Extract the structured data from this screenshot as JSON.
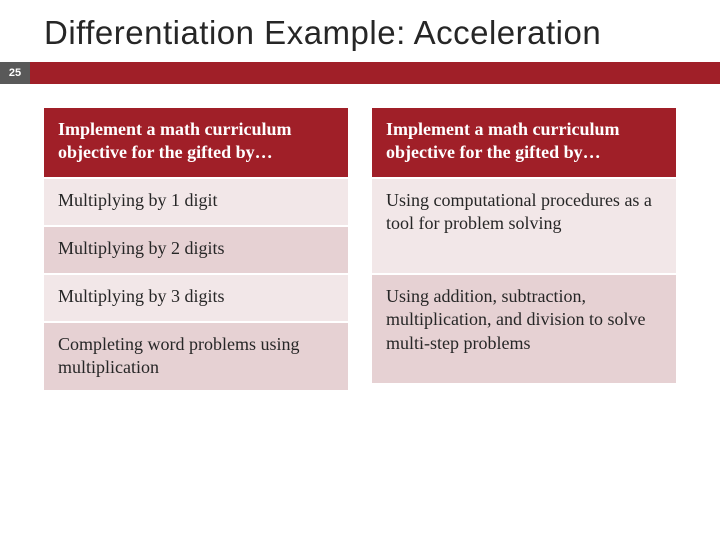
{
  "title": "Differentiation Example: Acceleration",
  "page_number": "25",
  "colors": {
    "bar": "#a01f28",
    "badge": "#595959",
    "header_bg": "#a01f28",
    "header_text": "#ffffff",
    "row_light": "#f2e7e8",
    "row_dark": "#e6d1d3",
    "text": "#262626"
  },
  "left": {
    "header": "Implement a math curriculum objective for the gifted by…",
    "rows": [
      "Multiplying by 1 digit",
      "Multiplying by 2 digits",
      "Multiplying by 3 digits",
      "Completing word problems using multiplication"
    ]
  },
  "right": {
    "header": "Implement a math curriculum objective for the gifted by…",
    "rows": [
      "Using computational procedures as a tool for problem solving",
      "Using addition, subtraction, multiplication, and division to solve multi-step problems"
    ]
  }
}
